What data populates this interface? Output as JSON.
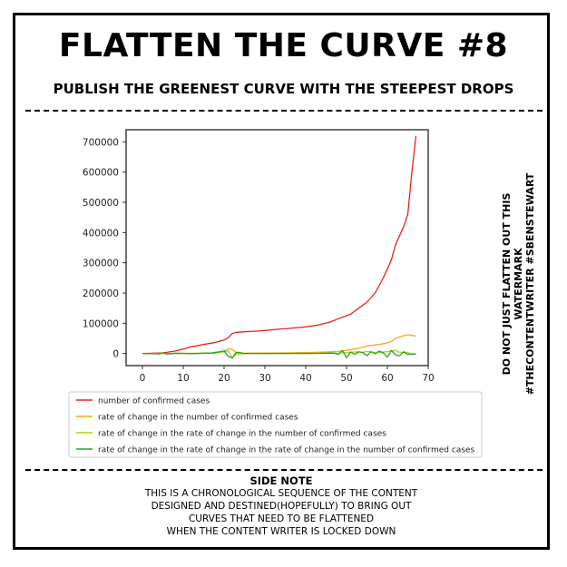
{
  "header": {
    "title": "FLATTEN THE CURVE #8",
    "subtitle": "PUBLISH THE GREENEST CURVE WITH THE STEEPEST DROPS"
  },
  "watermark": {
    "line1": "DO NOT JUST FLATTEN OUT THIS WATERMARK",
    "line2": "#THECONTENTWRITER #SBENSTEWART"
  },
  "side_note": {
    "heading": "SIDE NOTE",
    "lines": [
      "THIS IS A CHRONOLOGICAL SEQUENCE OF THE CONTENT",
      "DESIGNED AND DESTINED(HOPEFULLY) TO BRING OUT",
      "CURVES THAT NEED TO BE FLATTENED",
      "WHEN THE CONTENT WRITER IS LOCKED DOWN"
    ]
  },
  "chart_data": {
    "type": "line",
    "title": "",
    "xlabel": "",
    "ylabel": "",
    "xlim": [
      -4,
      70
    ],
    "ylim": [
      -40000,
      740000
    ],
    "xticks": [
      0,
      10,
      20,
      30,
      40,
      50,
      60,
      70
    ],
    "yticks": [
      0,
      100000,
      200000,
      300000,
      400000,
      500000,
      600000,
      700000
    ],
    "grid": false,
    "legend_position": "below",
    "series": [
      {
        "name": "number of confirmed cases",
        "color": "#e8231c",
        "points": [
          [
            0,
            0
          ],
          [
            5,
            2000
          ],
          [
            8,
            8000
          ],
          [
            10,
            15000
          ],
          [
            12,
            22000
          ],
          [
            15,
            30000
          ],
          [
            18,
            37000
          ],
          [
            20,
            45000
          ],
          [
            21,
            52000
          ],
          [
            22,
            66000
          ],
          [
            23,
            70000
          ],
          [
            25,
            72000
          ],
          [
            28,
            74000
          ],
          [
            30,
            76000
          ],
          [
            33,
            80000
          ],
          [
            36,
            83000
          ],
          [
            40,
            88000
          ],
          [
            43,
            94000
          ],
          [
            46,
            104000
          ],
          [
            48,
            115000
          ],
          [
            50,
            125000
          ],
          [
            51,
            130000
          ],
          [
            53,
            150000
          ],
          [
            55,
            170000
          ],
          [
            57,
            200000
          ],
          [
            59,
            250000
          ],
          [
            61,
            310000
          ],
          [
            62,
            360000
          ],
          [
            64,
            420000
          ],
          [
            65,
            460000
          ],
          [
            66,
            600000
          ],
          [
            67,
            720000
          ]
        ]
      },
      {
        "name": "rate of change in the number of confirmed cases",
        "color": "#f5a623",
        "points": [
          [
            0,
            0
          ],
          [
            5,
            0
          ],
          [
            10,
            500
          ],
          [
            15,
            1000
          ],
          [
            18,
            2000
          ],
          [
            20,
            8000
          ],
          [
            21,
            15000
          ],
          [
            22,
            14000
          ],
          [
            23,
            2000
          ],
          [
            25,
            1000
          ],
          [
            30,
            1500
          ],
          [
            35,
            2000
          ],
          [
            40,
            3000
          ],
          [
            45,
            5000
          ],
          [
            48,
            7000
          ],
          [
            50,
            10000
          ],
          [
            52,
            15000
          ],
          [
            54,
            20000
          ],
          [
            55,
            25000
          ],
          [
            57,
            28000
          ],
          [
            58,
            30000
          ],
          [
            60,
            35000
          ],
          [
            61,
            40000
          ],
          [
            62,
            50000
          ],
          [
            63,
            55000
          ],
          [
            64,
            58000
          ],
          [
            65,
            62000
          ],
          [
            66,
            60000
          ],
          [
            67,
            58000
          ]
        ]
      },
      {
        "name": "rate of change in the rate of change in the number of confirmed cases",
        "color": "#b5cd1e",
        "points": [
          [
            0,
            0
          ],
          [
            5,
            0
          ],
          [
            10,
            0
          ],
          [
            15,
            500
          ],
          [
            18,
            1000
          ],
          [
            20,
            6000
          ],
          [
            21,
            9000
          ],
          [
            22,
            -12000
          ],
          [
            23,
            -3000
          ],
          [
            25,
            0
          ],
          [
            30,
            0
          ],
          [
            35,
            500
          ],
          [
            40,
            500
          ],
          [
            45,
            1000
          ],
          [
            48,
            1500
          ],
          [
            50,
            3000
          ],
          [
            52,
            5000
          ],
          [
            54,
            4000
          ],
          [
            55,
            7000
          ],
          [
            57,
            3000
          ],
          [
            58,
            4000
          ],
          [
            60,
            6000
          ],
          [
            61,
            9000
          ],
          [
            62,
            10000
          ],
          [
            63,
            4000
          ],
          [
            64,
            3000
          ],
          [
            65,
            4000
          ],
          [
            66,
            -2000
          ],
          [
            67,
            -2000
          ]
        ]
      },
      {
        "name": "rate of change in the rate of change in the rate of change in the number of confirmed cases",
        "color": "#2ca02c",
        "points": [
          [
            0,
            0
          ],
          [
            2,
            0
          ],
          [
            4,
            -1500
          ],
          [
            5,
            2500
          ],
          [
            6,
            -2000
          ],
          [
            8,
            1000
          ],
          [
            10,
            500
          ],
          [
            12,
            -1000
          ],
          [
            15,
            1000
          ],
          [
            17,
            2000
          ],
          [
            19,
            6000
          ],
          [
            20,
            9000
          ],
          [
            21,
            -9000
          ],
          [
            22,
            -15000
          ],
          [
            23,
            4000
          ],
          [
            24,
            3000
          ],
          [
            25,
            0
          ],
          [
            28,
            500
          ],
          [
            30,
            0
          ],
          [
            33,
            500
          ],
          [
            35,
            0
          ],
          [
            38,
            500
          ],
          [
            40,
            0
          ],
          [
            43,
            500
          ],
          [
            45,
            1000
          ],
          [
            47,
            1500
          ],
          [
            48,
            -3000
          ],
          [
            49,
            10000
          ],
          [
            50,
            -14000
          ],
          [
            51,
            5000
          ],
          [
            52,
            -3000
          ],
          [
            53,
            6000
          ],
          [
            54,
            3000
          ],
          [
            55,
            -7000
          ],
          [
            56,
            6000
          ],
          [
            57,
            -1000
          ],
          [
            58,
            8000
          ],
          [
            59,
            2000
          ],
          [
            60,
            -12000
          ],
          [
            61,
            10000
          ],
          [
            62,
            -5000
          ],
          [
            63,
            -8000
          ],
          [
            64,
            6000
          ],
          [
            65,
            -3000
          ],
          [
            66,
            -2000
          ],
          [
            67,
            -1000
          ]
        ]
      }
    ]
  }
}
